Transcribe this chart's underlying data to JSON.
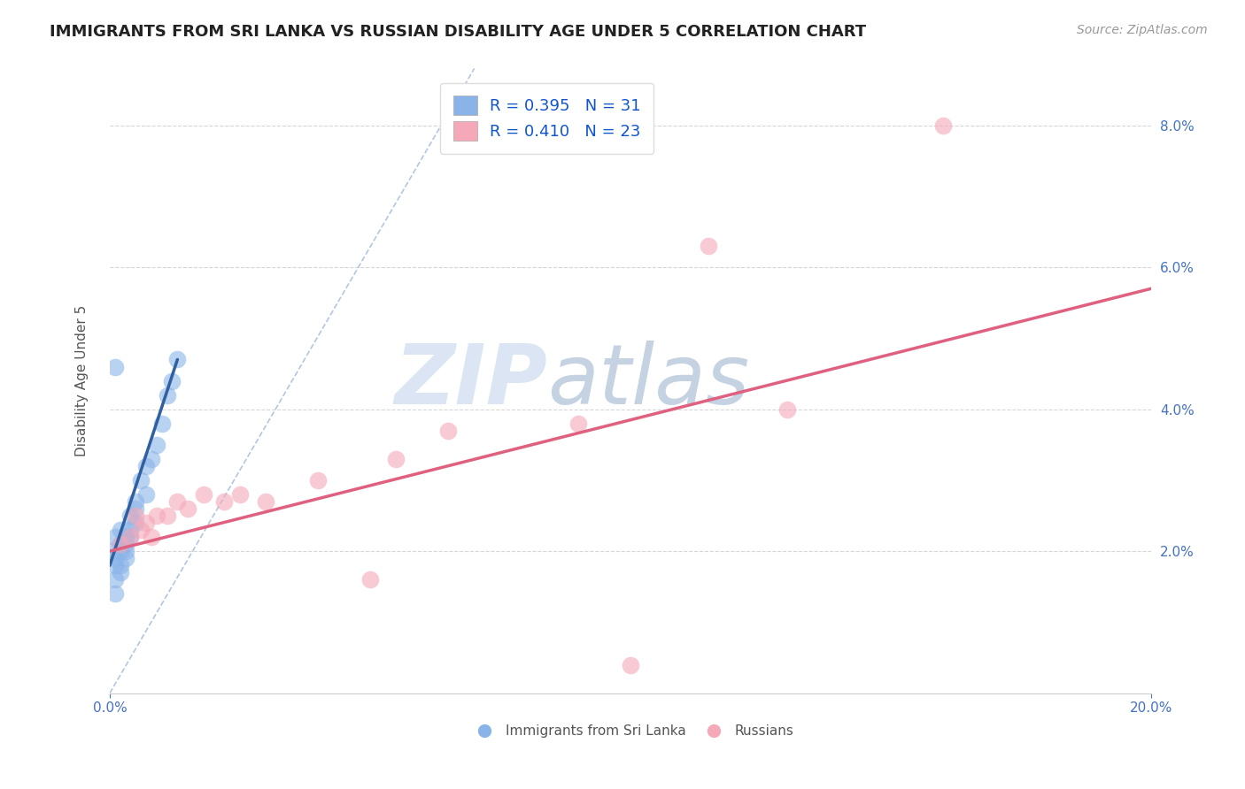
{
  "title": "IMMIGRANTS FROM SRI LANKA VS RUSSIAN DISABILITY AGE UNDER 5 CORRELATION CHART",
  "source": "Source: ZipAtlas.com",
  "xlabel": "",
  "ylabel": "Disability Age Under 5",
  "xlim": [
    0,
    0.2
  ],
  "ylim": [
    0,
    0.088
  ],
  "xticks": [
    0.0,
    0.2
  ],
  "xticklabels": [
    "0.0%",
    "20.0%"
  ],
  "yticks_right": [
    0.02,
    0.04,
    0.06,
    0.08
  ],
  "ytickslabels_right": [
    "2.0%",
    "4.0%",
    "6.0%",
    "8.0%"
  ],
  "legend_r1": "R = 0.395",
  "legend_n1": "N = 31",
  "legend_r2": "R = 0.410",
  "legend_n2": "N = 23",
  "color_blue": "#8ab4e8",
  "color_pink": "#f4a8b8",
  "color_blue_trend": "#3060a0",
  "color_pink_trend": "#e06080",
  "color_dashed": "#a0b8d8",
  "watermark_color": "#c8d8f0",
  "grid_color": "#cccccc",
  "background_color": "#ffffff",
  "title_fontsize": 13,
  "axis_label_fontsize": 11,
  "tick_fontsize": 11,
  "legend_fontsize": 13,
  "source_fontsize": 10,
  "tick_color": "#4472c4",
  "sri_lanka_x": [
    0.0005,
    0.001,
    0.001,
    0.001,
    0.001,
    0.001,
    0.002,
    0.002,
    0.002,
    0.002,
    0.002,
    0.003,
    0.003,
    0.003,
    0.003,
    0.004,
    0.004,
    0.004,
    0.005,
    0.005,
    0.005,
    0.006,
    0.007,
    0.007,
    0.008,
    0.009,
    0.01,
    0.011,
    0.012,
    0.013,
    0.001
  ],
  "sri_lanka_y": [
    0.02,
    0.022,
    0.019,
    0.018,
    0.016,
    0.014,
    0.021,
    0.02,
    0.018,
    0.023,
    0.017,
    0.022,
    0.021,
    0.02,
    0.019,
    0.025,
    0.023,
    0.022,
    0.027,
    0.026,
    0.024,
    0.03,
    0.028,
    0.032,
    0.033,
    0.035,
    0.038,
    0.042,
    0.044,
    0.047,
    0.046
  ],
  "russians_x": [
    0.002,
    0.004,
    0.005,
    0.006,
    0.007,
    0.008,
    0.009,
    0.011,
    0.013,
    0.015,
    0.018,
    0.022,
    0.025,
    0.03,
    0.04,
    0.055,
    0.065,
    0.09,
    0.115,
    0.13,
    0.05,
    0.16,
    0.1
  ],
  "russians_y": [
    0.021,
    0.022,
    0.025,
    0.023,
    0.024,
    0.022,
    0.025,
    0.025,
    0.027,
    0.026,
    0.028,
    0.027,
    0.028,
    0.027,
    0.03,
    0.033,
    0.037,
    0.038,
    0.063,
    0.04,
    0.016,
    0.08,
    0.004
  ],
  "blue_trend_x": [
    0.0,
    0.013
  ],
  "blue_trend_y": [
    0.018,
    0.047
  ],
  "pink_trend_x": [
    0.0,
    0.2
  ],
  "pink_trend_y": [
    0.02,
    0.057
  ],
  "dashed_line_x": [
    0.0,
    0.07
  ],
  "dashed_line_y": [
    0.0,
    0.088
  ]
}
